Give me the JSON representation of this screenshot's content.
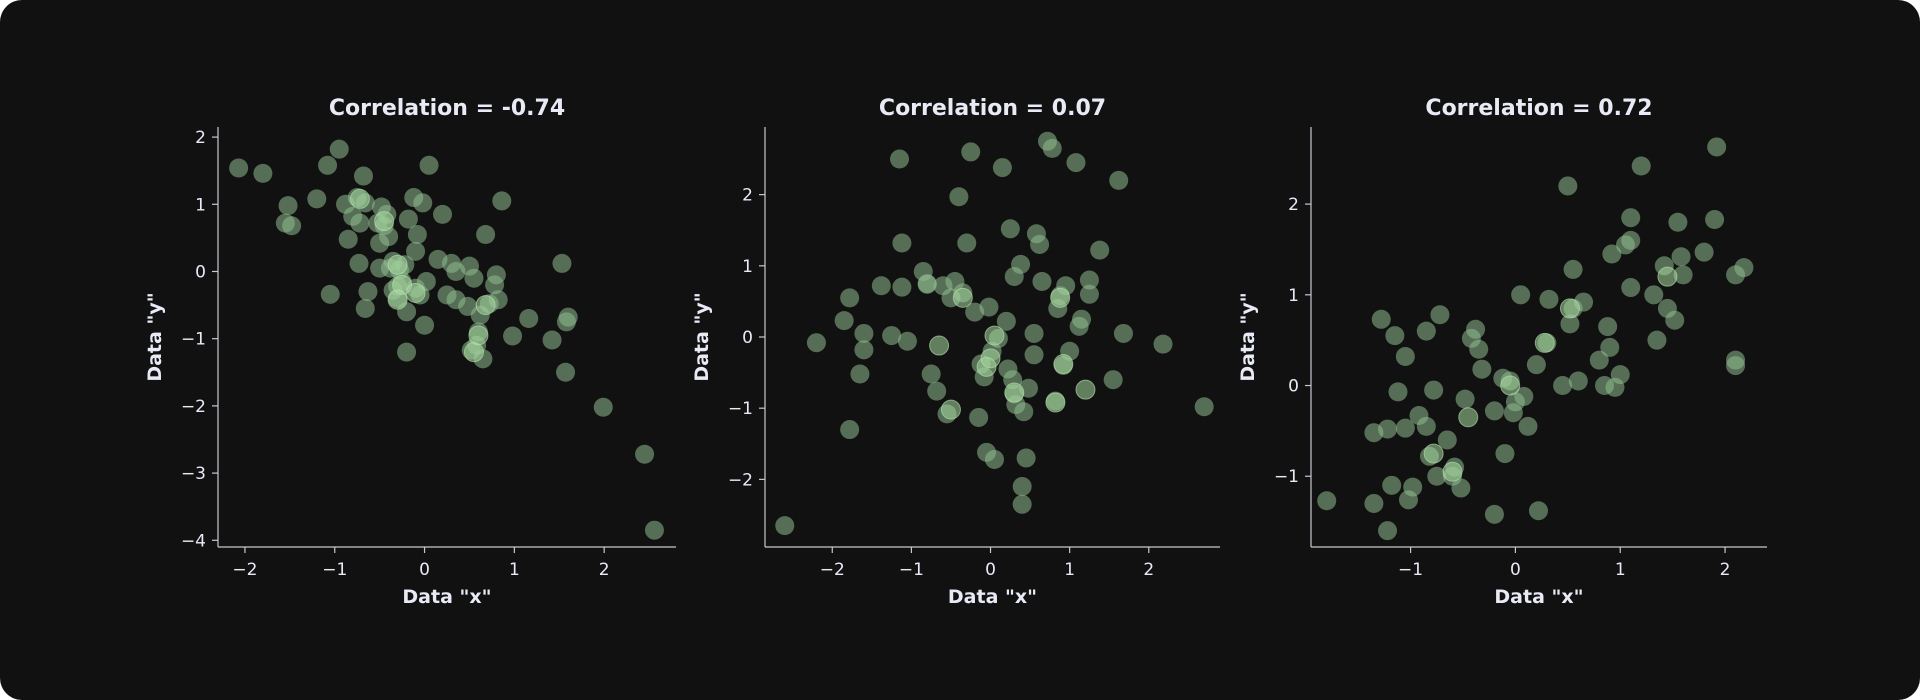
{
  "colors": {
    "background": "#111111",
    "point": "#8fbc8f",
    "point_alpha": 0.55,
    "point_edge": "#b8e6b0",
    "text": "#e8eaf6",
    "axis": "#c8c8d0"
  },
  "chart_data": [
    {
      "type": "scatter",
      "title": "Correlation = -0.74",
      "xlabel": "Data \"x\"",
      "ylabel": "Data \"y\"",
      "xlim": [
        -2.3,
        2.8
      ],
      "ylim": [
        -4.1,
        2.15
      ],
      "xticks": [
        -2,
        -1,
        0,
        1,
        2
      ],
      "yticks": [
        -4,
        -3,
        -2,
        -1,
        0,
        1,
        2
      ],
      "grid": false,
      "points": [
        [
          -2.07,
          1.54
        ],
        [
          -1.8,
          1.46
        ],
        [
          -1.52,
          0.98
        ],
        [
          -1.55,
          0.72
        ],
        [
          -1.48,
          0.68
        ],
        [
          -1.2,
          1.08
        ],
        [
          -1.08,
          1.58
        ],
        [
          -1.05,
          -0.34
        ],
        [
          -0.95,
          1.82
        ],
        [
          -0.88,
          1.0
        ],
        [
          -0.85,
          0.48
        ],
        [
          -0.8,
          0.82
        ],
        [
          -0.75,
          1.1
        ],
        [
          -0.72,
          0.72
        ],
        [
          -0.73,
          0.12
        ],
        [
          -0.68,
          1.42
        ],
        [
          -0.66,
          1.02
        ],
        [
          -0.63,
          -0.3
        ],
        [
          -0.66,
          -0.55
        ],
        [
          -0.52,
          0.72
        ],
        [
          -0.5,
          0.42
        ],
        [
          -0.48,
          0.96
        ],
        [
          -0.45,
          0.68
        ],
        [
          -0.42,
          0.85
        ],
        [
          -0.4,
          0.52
        ],
        [
          -0.38,
          0.05
        ],
        [
          -0.35,
          0.15
        ],
        [
          -0.35,
          -0.28
        ],
        [
          -0.3,
          -0.4
        ],
        [
          -0.28,
          0.02
        ],
        [
          -0.25,
          -0.15
        ],
        [
          -0.22,
          0.1
        ],
        [
          -0.2,
          -0.6
        ],
        [
          -0.18,
          0.78
        ],
        [
          -0.2,
          -1.2
        ],
        [
          -0.12,
          1.1
        ],
        [
          -0.1,
          0.3
        ],
        [
          -0.08,
          0.55
        ],
        [
          -0.1,
          -0.25
        ],
        [
          -0.05,
          -0.35
        ],
        [
          -0.02,
          1.02
        ],
        [
          0.0,
          -0.8
        ],
        [
          0.02,
          -0.15
        ],
        [
          0.05,
          1.58
        ],
        [
          0.15,
          0.18
        ],
        [
          0.2,
          0.85
        ],
        [
          0.25,
          -0.35
        ],
        [
          0.3,
          0.12
        ],
        [
          0.35,
          -0.42
        ],
        [
          0.48,
          -0.52
        ],
        [
          0.5,
          0.08
        ],
        [
          0.55,
          -0.1
        ],
        [
          0.52,
          -1.17
        ],
        [
          0.6,
          -0.9
        ],
        [
          0.62,
          -0.65
        ],
        [
          0.65,
          -1.3
        ],
        [
          0.68,
          0.55
        ],
        [
          0.72,
          -0.48
        ],
        [
          0.78,
          -0.2
        ],
        [
          0.8,
          -0.05
        ],
        [
          0.82,
          -0.42
        ],
        [
          0.86,
          1.05
        ],
        [
          0.98,
          -0.96
        ],
        [
          1.16,
          -0.7
        ],
        [
          1.42,
          -1.02
        ],
        [
          1.53,
          0.12
        ],
        [
          1.57,
          -1.5
        ],
        [
          1.58,
          -0.75
        ],
        [
          1.6,
          -0.68
        ],
        [
          1.99,
          -2.02
        ],
        [
          2.45,
          -2.72
        ],
        [
          2.56,
          -3.85
        ],
        [
          -0.5,
          0.05
        ],
        [
          -0.3,
          -0.22
        ],
        [
          0.35,
          0.0
        ],
        [
          0.58,
          -1.1
        ]
      ],
      "highlight": [
        [
          -0.72,
          1.08
        ],
        [
          -0.45,
          0.75
        ],
        [
          -0.3,
          0.1
        ],
        [
          -0.25,
          -0.2
        ],
        [
          -0.3,
          -0.42
        ],
        [
          -0.1,
          -0.32
        ],
        [
          0.55,
          -1.2
        ],
        [
          0.6,
          -0.95
        ],
        [
          0.68,
          -0.5
        ]
      ]
    },
    {
      "type": "scatter",
      "title": "Correlation = 0.07",
      "xlabel": "Data \"x\"",
      "ylabel": "Data \"y\"",
      "xlim": [
        -2.85,
        2.9
      ],
      "ylim": [
        -2.95,
        2.95
      ],
      "xticks": [
        -2,
        -1,
        0,
        1,
        2
      ],
      "yticks": [
        -2,
        -1,
        0,
        1,
        2
      ],
      "grid": false,
      "points": [
        [
          -2.6,
          -2.65
        ],
        [
          -2.2,
          -0.08
        ],
        [
          -1.85,
          0.23
        ],
        [
          -1.78,
          0.55
        ],
        [
          -1.78,
          -1.3
        ],
        [
          -1.65,
          -0.52
        ],
        [
          -1.6,
          0.05
        ],
        [
          -1.6,
          -0.18
        ],
        [
          -1.38,
          0.72
        ],
        [
          -1.25,
          0.02
        ],
        [
          -1.15,
          2.5
        ],
        [
          -1.12,
          1.32
        ],
        [
          -1.12,
          0.7
        ],
        [
          -1.05,
          -0.06
        ],
        [
          -0.85,
          0.92
        ],
        [
          -0.8,
          0.74
        ],
        [
          -0.75,
          -0.52
        ],
        [
          -0.68,
          -0.76
        ],
        [
          -0.6,
          0.72
        ],
        [
          -0.55,
          -1.08
        ],
        [
          -0.5,
          0.55
        ],
        [
          -0.4,
          1.97
        ],
        [
          -0.35,
          0.62
        ],
        [
          -0.3,
          1.32
        ],
        [
          -0.25,
          2.6
        ],
        [
          -0.2,
          0.35
        ],
        [
          -0.15,
          -1.13
        ],
        [
          -0.12,
          -0.38
        ],
        [
          -0.08,
          -0.56
        ],
        [
          -0.05,
          -1.62
        ],
        [
          -0.02,
          0.42
        ],
        [
          0.02,
          -0.2
        ],
        [
          0.05,
          -1.72
        ],
        [
          0.1,
          -0.02
        ],
        [
          0.15,
          2.38
        ],
        [
          0.2,
          0.22
        ],
        [
          0.22,
          -0.45
        ],
        [
          0.25,
          1.52
        ],
        [
          0.28,
          -0.6
        ],
        [
          0.3,
          -0.8
        ],
        [
          0.32,
          -0.95
        ],
        [
          0.38,
          1.02
        ],
        [
          0.4,
          -2.1
        ],
        [
          0.4,
          -2.35
        ],
        [
          0.42,
          -1.05
        ],
        [
          0.45,
          -1.7
        ],
        [
          0.48,
          -0.72
        ],
        [
          0.55,
          0.05
        ],
        [
          0.58,
          1.45
        ],
        [
          0.62,
          1.3
        ],
        [
          0.65,
          0.78
        ],
        [
          0.72,
          2.75
        ],
        [
          0.78,
          2.65
        ],
        [
          0.82,
          -0.9
        ],
        [
          0.85,
          0.4
        ],
        [
          0.88,
          0.58
        ],
        [
          0.92,
          -0.4
        ],
        [
          0.95,
          0.72
        ],
        [
          1.0,
          -0.2
        ],
        [
          1.08,
          2.45
        ],
        [
          1.12,
          0.15
        ],
        [
          1.15,
          0.25
        ],
        [
          1.25,
          0.8
        ],
        [
          1.25,
          0.6
        ],
        [
          1.38,
          1.22
        ],
        [
          1.55,
          -0.6
        ],
        [
          1.62,
          2.2
        ],
        [
          1.68,
          0.05
        ],
        [
          2.18,
          -0.1
        ],
        [
          2.7,
          -0.98
        ],
        [
          -0.45,
          0.78
        ],
        [
          0.3,
          0.85
        ],
        [
          -0.8,
          0.75
        ],
        [
          0.55,
          -0.25
        ]
      ],
      "highlight": [
        [
          -0.65,
          -0.12
        ],
        [
          -0.5,
          -1.02
        ],
        [
          -0.35,
          0.55
        ],
        [
          -0.05,
          -0.42
        ],
        [
          0.05,
          0.02
        ],
        [
          0.0,
          -0.3
        ],
        [
          0.3,
          -0.78
        ],
        [
          0.82,
          -0.92
        ],
        [
          0.88,
          0.55
        ],
        [
          0.92,
          -0.38
        ],
        [
          1.2,
          -0.74
        ]
      ]
    },
    {
      "type": "scatter",
      "title": "Correlation = 0.72",
      "xlabel": "Data \"x\"",
      "ylabel": "Data \"y\"",
      "xlim": [
        -1.95,
        2.4
      ],
      "ylim": [
        -1.78,
        2.85
      ],
      "xticks": [
        -1,
        0,
        1,
        2
      ],
      "yticks": [
        -1,
        0,
        1,
        2
      ],
      "grid": false,
      "points": [
        [
          -1.8,
          -1.27
        ],
        [
          -1.35,
          -1.3
        ],
        [
          -1.35,
          -0.52
        ],
        [
          -1.28,
          0.73
        ],
        [
          -1.22,
          -0.48
        ],
        [
          -1.22,
          -1.6
        ],
        [
          -1.18,
          -1.1
        ],
        [
          -1.15,
          0.55
        ],
        [
          -1.12,
          -0.07
        ],
        [
          -1.05,
          -0.47
        ],
        [
          -1.05,
          0.32
        ],
        [
          -1.02,
          -1.26
        ],
        [
          -0.98,
          -1.12
        ],
        [
          -0.92,
          -0.33
        ],
        [
          -0.85,
          0.6
        ],
        [
          -0.85,
          -0.45
        ],
        [
          -0.82,
          -0.78
        ],
        [
          -0.78,
          -0.05
        ],
        [
          -0.75,
          -1.0
        ],
        [
          -0.72,
          0.78
        ],
        [
          -0.65,
          -0.6
        ],
        [
          -0.6,
          -1.0
        ],
        [
          -0.58,
          -0.9
        ],
        [
          -0.52,
          -1.13
        ],
        [
          -0.48,
          -0.15
        ],
        [
          -0.42,
          0.52
        ],
        [
          -0.38,
          0.62
        ],
        [
          -0.35,
          0.4
        ],
        [
          -0.32,
          0.18
        ],
        [
          -0.2,
          -0.28
        ],
        [
          -0.2,
          -1.42
        ],
        [
          -0.12,
          0.08
        ],
        [
          -0.1,
          -0.75
        ],
        [
          -0.05,
          0.05
        ],
        [
          -0.02,
          -0.3
        ],
        [
          0.0,
          -0.18
        ],
        [
          0.05,
          1.0
        ],
        [
          0.08,
          -0.12
        ],
        [
          0.12,
          -0.45
        ],
        [
          0.2,
          0.23
        ],
        [
          0.22,
          -1.38
        ],
        [
          0.3,
          0.47
        ],
        [
          0.32,
          0.95
        ],
        [
          0.45,
          0.0
        ],
        [
          0.5,
          2.2
        ],
        [
          0.52,
          0.68
        ],
        [
          0.55,
          1.28
        ],
        [
          0.55,
          0.85
        ],
        [
          0.6,
          0.05
        ],
        [
          0.65,
          0.92
        ],
        [
          0.8,
          0.28
        ],
        [
          0.85,
          0.0
        ],
        [
          0.88,
          0.65
        ],
        [
          0.9,
          0.42
        ],
        [
          0.92,
          1.45
        ],
        [
          0.95,
          -0.02
        ],
        [
          1.0,
          0.12
        ],
        [
          1.05,
          1.55
        ],
        [
          1.1,
          1.85
        ],
        [
          1.1,
          1.08
        ],
        [
          1.2,
          2.42
        ],
        [
          1.32,
          1.0
        ],
        [
          1.35,
          0.5
        ],
        [
          1.42,
          1.32
        ],
        [
          1.45,
          0.85
        ],
        [
          1.52,
          0.72
        ],
        [
          1.55,
          1.8
        ],
        [
          1.6,
          1.22
        ],
        [
          1.8,
          1.47
        ],
        [
          1.9,
          1.83
        ],
        [
          1.92,
          2.63
        ],
        [
          2.1,
          1.22
        ],
        [
          2.1,
          0.28
        ],
        [
          2.1,
          0.22
        ],
        [
          2.18,
          1.3
        ],
        [
          1.1,
          1.6
        ],
        [
          1.58,
          1.42
        ]
      ],
      "highlight": [
        [
          -0.78,
          -0.75
        ],
        [
          -0.6,
          -0.95
        ],
        [
          -0.45,
          -0.35
        ],
        [
          -0.05,
          0.0
        ],
        [
          0.28,
          0.47
        ],
        [
          0.52,
          0.85
        ],
        [
          1.45,
          1.2
        ]
      ]
    }
  ]
}
